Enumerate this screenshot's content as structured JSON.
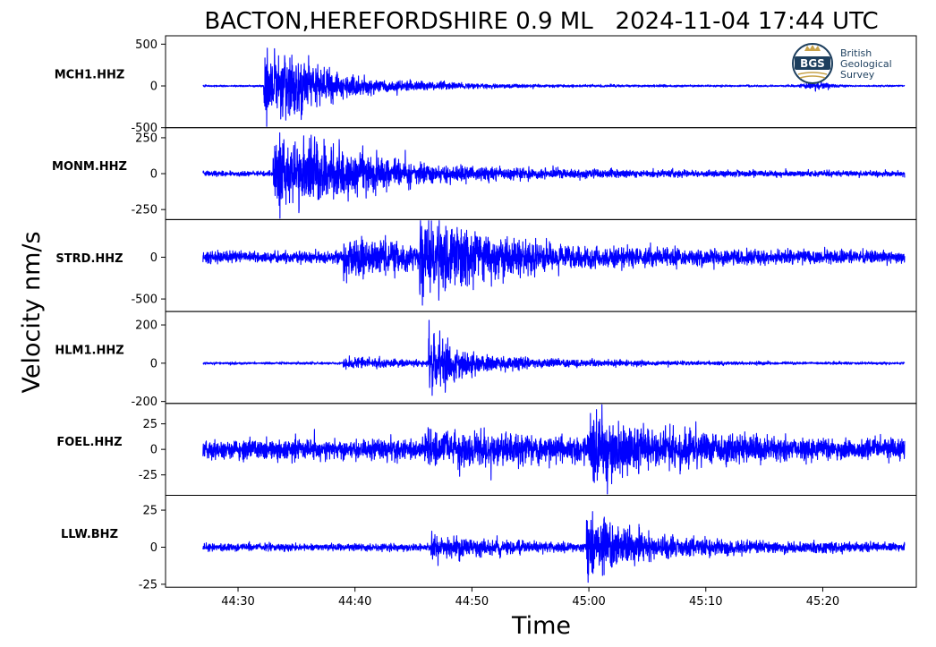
{
  "chart_data": {
    "type": "line",
    "title": "BACTON,HEREFORDSHIRE 0.9 ML   2024-11-04 17:44 UTC",
    "xlabel": "Time",
    "ylabel": "Velocity nm/s",
    "x_ticks": [
      "44:30",
      "44:40",
      "44:50",
      "45:00",
      "45:10",
      "45:20"
    ],
    "x_tick_seconds": [
      30,
      40,
      50,
      60,
      70,
      80
    ],
    "x_range_seconds": [
      23.8,
      88.0
    ],
    "trace_seconds": [
      27,
      87
    ],
    "line_color": "#0000ff",
    "grid": false,
    "legend": "none",
    "logo": {
      "name": "bgs-logo",
      "mark": "BGS",
      "lines": [
        "British",
        "Geological",
        "Survey"
      ]
    },
    "series": [
      {
        "name": "MCH1.HHZ",
        "ylim": [
          -500,
          600
        ],
        "yticks": [
          500,
          0,
          -500
        ],
        "ytick_labels": [
          "500",
          "0",
          "-500"
        ],
        "noise": 10,
        "arrivals": [
          {
            "t": 32.2,
            "amp": 520,
            "decay": 3.5
          },
          {
            "t": 33.5,
            "amp": 160,
            "decay": 8.0
          }
        ],
        "bumps": [
          {
            "t": 79.5,
            "amp": 45,
            "width": 1.2
          }
        ]
      },
      {
        "name": "MONM.HHZ",
        "ylim": [
          -320,
          320
        ],
        "yticks": [
          250,
          0,
          -250
        ],
        "ytick_labels": [
          "250",
          "0",
          "-250"
        ],
        "noise": 18,
        "arrivals": [
          {
            "t": 33.0,
            "amp": 260,
            "decay": 4.5
          },
          {
            "t": 35.0,
            "amp": 130,
            "decay": 11.0
          }
        ],
        "bumps": []
      },
      {
        "name": "STRD.HHZ",
        "ylim": [
          -650,
          450
        ],
        "yticks": [
          0,
          -500
        ],
        "ytick_labels": [
          "0",
          "-500"
        ],
        "noise": 70,
        "arrivals": [
          {
            "t": 39.0,
            "amp": 200,
            "decay": 9.0
          },
          {
            "t": 45.5,
            "amp": 380,
            "decay": 3.0
          },
          {
            "t": 47.5,
            "amp": 150,
            "decay": 12.0
          }
        ],
        "bumps": []
      },
      {
        "name": "HLM1.HHZ",
        "ylim": [
          -210,
          270
        ],
        "yticks": [
          200,
          0,
          -200
        ],
        "ytick_labels": [
          "200",
          "0",
          "-200"
        ],
        "noise": 6,
        "arrivals": [
          {
            "t": 39.0,
            "amp": 30,
            "decay": 7.0
          },
          {
            "t": 46.3,
            "amp": 200,
            "decay": 1.6
          },
          {
            "t": 47.2,
            "amp": 45,
            "decay": 9.0
          }
        ],
        "bumps": []
      },
      {
        "name": "FOEL.HHZ",
        "ylim": [
          -45,
          45
        ],
        "yticks": [
          25,
          0,
          -25
        ],
        "ytick_labels": [
          "25",
          "0",
          "-25"
        ],
        "noise": 10,
        "arrivals": [
          {
            "t": 46.0,
            "amp": 10,
            "decay": 14.0
          },
          {
            "t": 60.0,
            "amp": 22,
            "decay": 7.0
          }
        ],
        "bumps": []
      },
      {
        "name": "LLW.BHZ",
        "ylim": [
          -27,
          35
        ],
        "yticks": [
          25,
          0,
          -25
        ],
        "ytick_labels": [
          "25",
          "0",
          "-25"
        ],
        "noise": 2.5,
        "arrivals": [
          {
            "t": 46.5,
            "amp": 7,
            "decay": 6.0
          },
          {
            "t": 59.8,
            "amp": 26,
            "decay": 1.8
          },
          {
            "t": 61.0,
            "amp": 8,
            "decay": 10.0
          }
        ],
        "bumps": []
      }
    ]
  }
}
